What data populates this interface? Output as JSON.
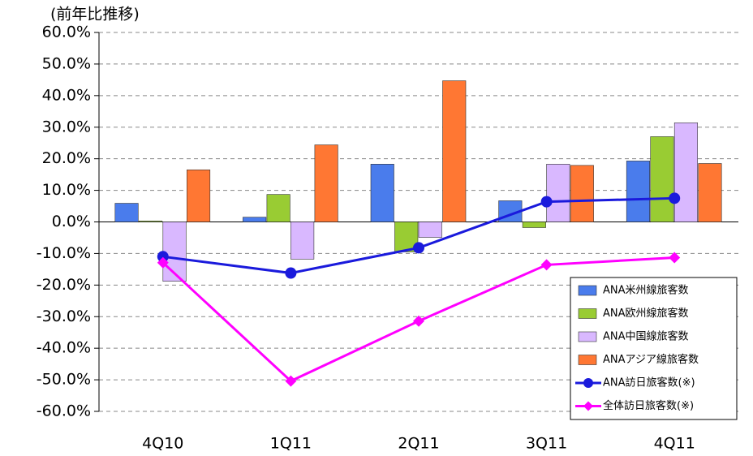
{
  "chart_data": {
    "type": "bar",
    "title": "(前年比推移)",
    "categories": [
      "4Q10",
      "1Q11",
      "2Q11",
      "3Q11",
      "4Q11"
    ],
    "ylim": [
      -60,
      60
    ],
    "yticks": [
      {
        "value": -60,
        "label": "-60.0%"
      },
      {
        "value": -50,
        "label": "-50.0%"
      },
      {
        "value": -40,
        "label": "-40.0%"
      },
      {
        "value": -30,
        "label": "-30.0%"
      },
      {
        "value": -20,
        "label": "-20.0%"
      },
      {
        "value": -10,
        "label": "-10.0%"
      },
      {
        "value": 0,
        "label": "0.0%"
      },
      {
        "value": 10,
        "label": "10.0%"
      },
      {
        "value": 20,
        "label": "20.0%"
      },
      {
        "value": 30,
        "label": "30.0%"
      },
      {
        "value": 40,
        "label": "40.0%"
      },
      {
        "value": 50,
        "label": "50.0%"
      },
      {
        "value": 60,
        "label": "60.0%"
      }
    ],
    "grid": true,
    "legend": "bottom-right",
    "series": [
      {
        "name": "ANA米州線旅客数",
        "type": "bar",
        "color": "#4a7cec",
        "values": [
          5.9,
          1.5,
          18.3,
          6.7,
          19.3
        ]
      },
      {
        "name": "ANA欧州線旅客数",
        "type": "bar",
        "color": "#99cc33",
        "values": [
          0.3,
          8.7,
          -9.5,
          -1.8,
          27.0
        ]
      },
      {
        "name": "ANA中国線旅客数",
        "type": "bar",
        "color": "#d9b8ff",
        "values": [
          -18.8,
          -11.8,
          -4.9,
          18.3,
          31.4
        ]
      },
      {
        "name": "ANAアジア線旅客数",
        "type": "bar",
        "color": "#ff7733",
        "values": [
          16.5,
          24.4,
          44.7,
          17.9,
          18.5
        ]
      },
      {
        "name": "ANA訪日旅客数(※)",
        "type": "line",
        "marker": "circle",
        "color": "#1a1adc",
        "values": [
          -11.0,
          -16.2,
          -8.2,
          6.4,
          7.5
        ]
      },
      {
        "name": "全体訪日旅客数(※)",
        "type": "line",
        "marker": "diamond",
        "color": "#ff00ff",
        "values": [
          -12.9,
          -50.4,
          -31.4,
          -13.6,
          -11.3
        ]
      }
    ]
  }
}
